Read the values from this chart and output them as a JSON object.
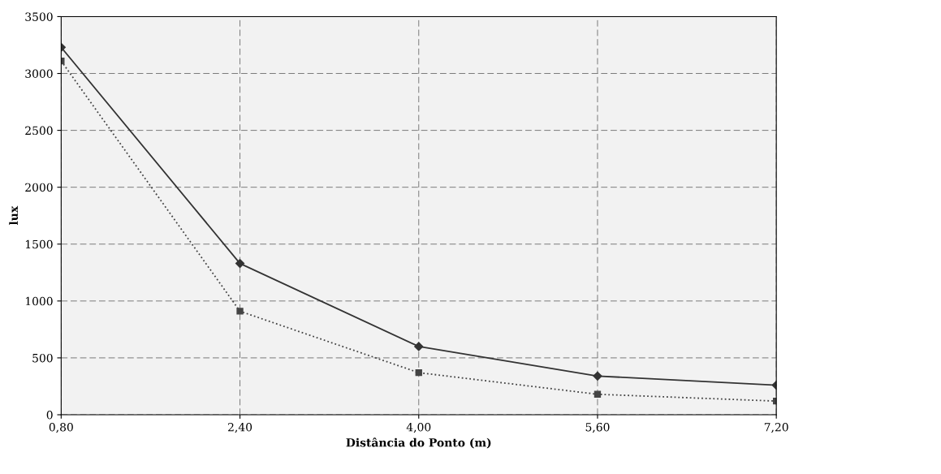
{
  "chart_data": {
    "type": "line",
    "xlabel": "Distância do Ponto (m)",
    "ylabel": "lux",
    "categories": [
      "0,80",
      "2,40",
      "4,00",
      "5,60",
      "7,20"
    ],
    "series": [
      {
        "color": "#333333",
        "marker": "diamond",
        "line_style": "solid",
        "values": [
          3230,
          1330,
          600,
          340,
          260
        ]
      },
      {
        "color": "#444444",
        "marker": "square",
        "line_style": "dotted",
        "values": [
          3110,
          910,
          370,
          180,
          120
        ]
      }
    ],
    "ylim": [
      0,
      3500
    ],
    "yticks": [
      0,
      500,
      1000,
      1500,
      2000,
      2500,
      3000,
      3500
    ],
    "grid": true
  }
}
